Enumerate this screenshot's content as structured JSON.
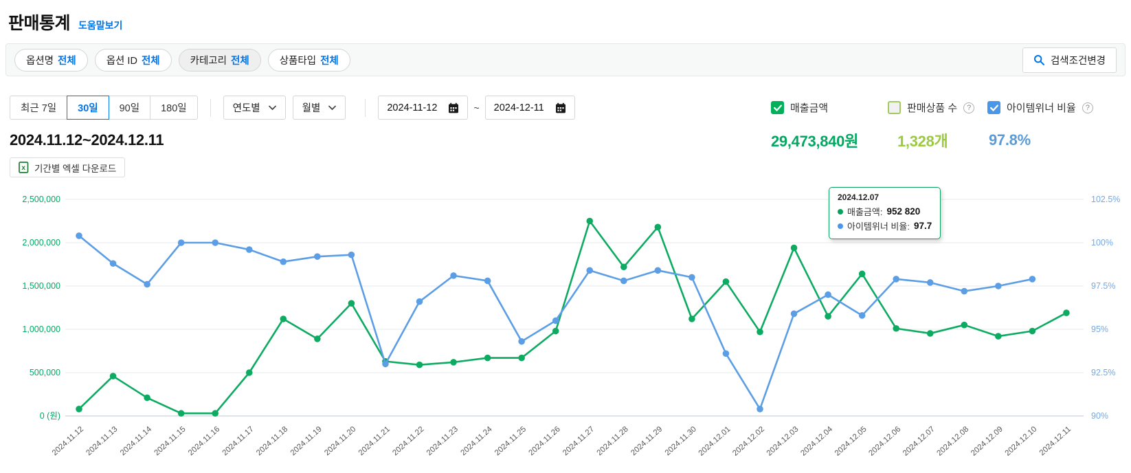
{
  "header": {
    "title": "판매통계",
    "help_link": "도움말보기"
  },
  "filters": {
    "chips": [
      {
        "label": "옵션명",
        "value": "전체"
      },
      {
        "label": "옵션 ID",
        "value": "전체"
      },
      {
        "label": "카테고리",
        "value": "전체"
      },
      {
        "label": "상품타입",
        "value": "전체"
      }
    ],
    "search_button": "검색조건변경"
  },
  "period_controls": {
    "range_buttons": [
      "최근 7일",
      "30일",
      "90일",
      "180일"
    ],
    "active_range": "30일",
    "dropdowns": [
      "연도별",
      "월별"
    ],
    "date_from": "2024-11-12",
    "date_separator": "~",
    "date_to": "2024-12-11"
  },
  "legend": [
    {
      "label": "매출금액",
      "checked": true,
      "color": "#00b05b",
      "help": false
    },
    {
      "label": "판매상품 수",
      "checked": false,
      "color": "#a4c95c",
      "help": true
    },
    {
      "label": "아이템위너 비율",
      "checked": true,
      "color": "#4a96e8",
      "help": true
    }
  ],
  "summary": {
    "date_range": "2024.11.12~2024.12.11",
    "stats": [
      {
        "value": "29,473,840원",
        "color": "#00a862"
      },
      {
        "value": "1,328개",
        "color": "#9bca3e"
      },
      {
        "value": "97.8%",
        "color": "#5b9bd5"
      }
    ],
    "excel_button": "기간별 엑셀 다운로드"
  },
  "tooltip": {
    "date": "2024.12.07",
    "rows": [
      {
        "label": "매출금액:",
        "value": "952 820",
        "color": "#0aa05d"
      },
      {
        "label": "아이템위너 비율:",
        "value": "97.7",
        "color": "#4a96e8"
      }
    ]
  },
  "chart_data": {
    "type": "line",
    "x": [
      "2024.11.12",
      "2024.11.13",
      "2024.11.14",
      "2024.11.15",
      "2024.11.16",
      "2024.11.17",
      "2024.11.18",
      "2024.11.19",
      "2024.11.20",
      "2024.11.21",
      "2024.11.22",
      "2024.11.23",
      "2024.11.24",
      "2024.11.25",
      "2024.11.26",
      "2024.11.27",
      "2024.11.28",
      "2024.11.29",
      "2024.11.30",
      "2024.12.01",
      "2024.12.02",
      "2024.12.03",
      "2024.12.04",
      "2024.12.05",
      "2024.12.06",
      "2024.12.07",
      "2024.12.08",
      "2024.12.09",
      "2024.12.10",
      "2024.12.11"
    ],
    "series": [
      {
        "name": "매출금액",
        "axis": "left",
        "color": "#0cab61",
        "values": [
          80000,
          460000,
          210000,
          30000,
          30000,
          500000,
          1120000,
          890000,
          1300000,
          630000,
          590000,
          620000,
          670000,
          670000,
          980000,
          2250000,
          1720000,
          2180000,
          1120000,
          1550000,
          970000,
          1940000,
          1150000,
          1640000,
          1010000,
          952820,
          1050000,
          920000,
          980000,
          1190000
        ]
      },
      {
        "name": "아이템위너 비율",
        "axis": "right",
        "color": "#5b9ee5",
        "values": [
          100.4,
          98.8,
          97.6,
          100.0,
          100.0,
          99.6,
          98.9,
          99.2,
          99.3,
          93.0,
          96.6,
          98.1,
          97.8,
          94.3,
          95.5,
          98.4,
          97.8,
          98.4,
          98.0,
          93.6,
          90.4,
          95.9,
          97.0,
          95.8,
          97.9,
          97.7,
          97.2,
          97.5,
          97.9,
          null
        ]
      }
    ],
    "left_axis": {
      "label": "(원)",
      "min": 0,
      "max": 2500000,
      "ticks": [
        "0 (원)",
        "500,000",
        "1,000,000",
        "1,500,000",
        "2,000,000",
        "2,500,000"
      ],
      "color": "#00a862"
    },
    "right_axis": {
      "min": 90,
      "max": 102.5,
      "ticks": [
        "90%",
        "92.5%",
        "95%",
        "97.5%",
        "100%",
        "102.5%"
      ],
      "color": "#72a9e4"
    },
    "grid": true,
    "legend_position": "top-right"
  }
}
